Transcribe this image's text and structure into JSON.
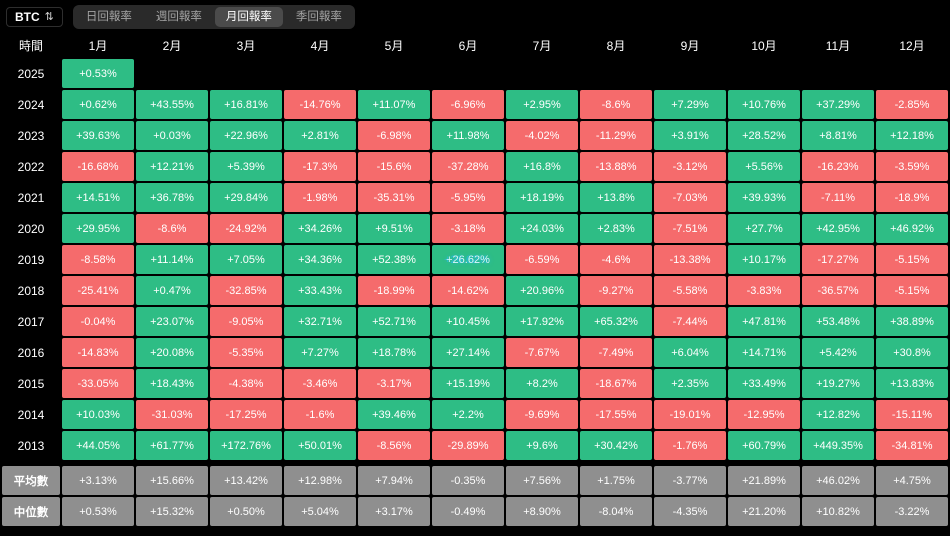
{
  "symbol_select": {
    "value": "BTC"
  },
  "tabs": [
    {
      "label": "日回報率",
      "name": "tab-daily-returns",
      "active": false
    },
    {
      "label": "週回報率",
      "name": "tab-weekly-returns",
      "active": false
    },
    {
      "label": "月回報率",
      "name": "tab-monthly-returns",
      "active": true
    },
    {
      "label": "季回報率",
      "name": "tab-quarterly-returns",
      "active": false
    }
  ],
  "table": {
    "time_header": "時間",
    "months": [
      "1月",
      "2月",
      "3月",
      "4月",
      "5月",
      "6月",
      "7月",
      "8月",
      "9月",
      "10月",
      "11月",
      "12月"
    ],
    "rows": [
      {
        "label": "2025",
        "kind": "year",
        "cells": [
          "+0.53%",
          "",
          "",
          "",
          "",
          "",
          "",
          "",
          "",
          "",
          "",
          ""
        ]
      },
      {
        "label": "2024",
        "kind": "year",
        "cells": [
          "+0.62%",
          "+43.55%",
          "+16.81%",
          "-14.76%",
          "+11.07%",
          "-6.96%",
          "+2.95%",
          "-8.6%",
          "+7.29%",
          "+10.76%",
          "+37.29%",
          "-2.85%"
        ]
      },
      {
        "label": "2023",
        "kind": "year",
        "cells": [
          "+39.63%",
          "+0.03%",
          "+22.96%",
          "+2.81%",
          "-6.98%",
          "+11.98%",
          "-4.02%",
          "-11.29%",
          "+3.91%",
          "+28.52%",
          "+8.81%",
          "+12.18%"
        ]
      },
      {
        "label": "2022",
        "kind": "year",
        "cells": [
          "-16.68%",
          "+12.21%",
          "+5.39%",
          "-17.3%",
          "-15.6%",
          "-37.28%",
          "+16.8%",
          "-13.88%",
          "-3.12%",
          "+5.56%",
          "-16.23%",
          "-3.59%"
        ]
      },
      {
        "label": "2021",
        "kind": "year",
        "cells": [
          "+14.51%",
          "+36.78%",
          "+29.84%",
          "-1.98%",
          "-35.31%",
          "-5.95%",
          "+18.19%",
          "+13.8%",
          "-7.03%",
          "+39.93%",
          "-7.11%",
          "-18.9%"
        ]
      },
      {
        "label": "2020",
        "kind": "year",
        "cells": [
          "+29.95%",
          "-8.6%",
          "-24.92%",
          "+34.26%",
          "+9.51%",
          "-3.18%",
          "+24.03%",
          "+2.83%",
          "-7.51%",
          "+27.7%",
          "+42.95%",
          "+46.92%"
        ]
      },
      {
        "label": "2019",
        "kind": "year",
        "cells": [
          "-8.58%",
          "+11.14%",
          "+7.05%",
          "+34.36%",
          "+52.38%",
          "+26.62%",
          "-6.59%",
          "-4.6%",
          "-13.38%",
          "+10.17%",
          "-17.27%",
          "-5.15%"
        ]
      },
      {
        "label": "2018",
        "kind": "year",
        "cells": [
          "-25.41%",
          "+0.47%",
          "-32.85%",
          "+33.43%",
          "-18.99%",
          "-14.62%",
          "+20.96%",
          "-9.27%",
          "-5.58%",
          "-3.83%",
          "-36.57%",
          "-5.15%"
        ]
      },
      {
        "label": "2017",
        "kind": "year",
        "cells": [
          "-0.04%",
          "+23.07%",
          "-9.05%",
          "+32.71%",
          "+52.71%",
          "+10.45%",
          "+17.92%",
          "+65.32%",
          "-7.44%",
          "+47.81%",
          "+53.48%",
          "+38.89%"
        ]
      },
      {
        "label": "2016",
        "kind": "year",
        "cells": [
          "-14.83%",
          "+20.08%",
          "-5.35%",
          "+7.27%",
          "+18.78%",
          "+27.14%",
          "-7.67%",
          "-7.49%",
          "+6.04%",
          "+14.71%",
          "+5.42%",
          "+30.8%"
        ]
      },
      {
        "label": "2015",
        "kind": "year",
        "cells": [
          "-33.05%",
          "+18.43%",
          "-4.38%",
          "-3.46%",
          "-3.17%",
          "+15.19%",
          "+8.2%",
          "-18.67%",
          "+2.35%",
          "+33.49%",
          "+19.27%",
          "+13.83%"
        ]
      },
      {
        "label": "2014",
        "kind": "year",
        "cells": [
          "+10.03%",
          "-31.03%",
          "-17.25%",
          "-1.6%",
          "+39.46%",
          "+2.2%",
          "-9.69%",
          "-17.55%",
          "-19.01%",
          "-12.95%",
          "+12.82%",
          "-15.11%"
        ]
      },
      {
        "label": "2013",
        "kind": "year",
        "cells": [
          "+44.05%",
          "+61.77%",
          "+172.76%",
          "+50.01%",
          "-8.56%",
          "-29.89%",
          "+9.6%",
          "+30.42%",
          "-1.76%",
          "+60.79%",
          "+449.35%",
          "-34.81%"
        ]
      },
      {
        "label": "平均數",
        "kind": "stat",
        "cells": [
          "+3.13%",
          "+15.66%",
          "+13.42%",
          "+12.98%",
          "+7.94%",
          "-0.35%",
          "+7.56%",
          "+1.75%",
          "-3.77%",
          "+21.89%",
          "+46.02%",
          "+4.75%"
        ]
      },
      {
        "label": "中位數",
        "kind": "stat",
        "cells": [
          "+0.53%",
          "+15.32%",
          "+0.50%",
          "+5.04%",
          "+3.17%",
          "-0.49%",
          "+8.90%",
          "-8.04%",
          "-4.35%",
          "+21.20%",
          "+10.82%",
          "-3.22%"
        ]
      }
    ]
  },
  "watermark_cell": {
    "row_label": "2019",
    "col_index": 5
  },
  "colors": {
    "positive": "#2ebd85",
    "negative": "#f56b6c",
    "stat": "#8f8f8f",
    "background": "#000000"
  }
}
